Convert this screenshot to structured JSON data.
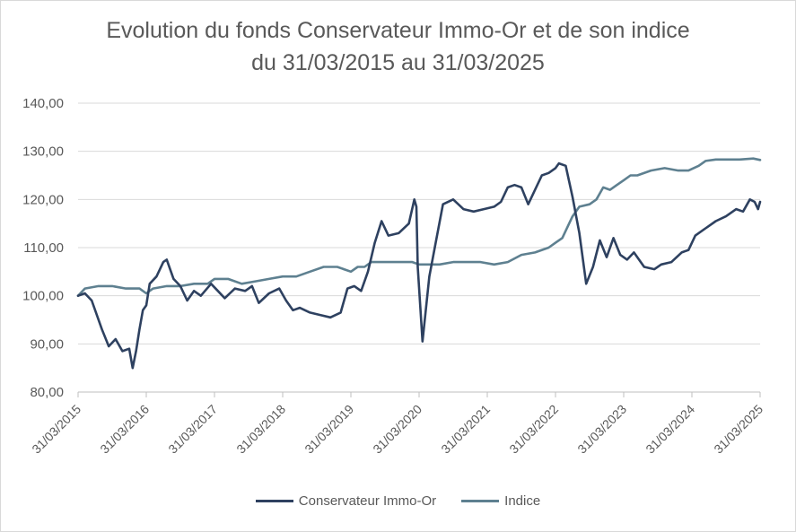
{
  "chart_data": {
    "type": "line",
    "title": "Evolution du fonds Conservateur Immo-Or et de son indice",
    "subtitle": "du 31/03/2015 au 31/03/2025",
    "xlabel": "",
    "ylabel": "",
    "ylim": [
      80,
      140
    ],
    "y_ticks": [
      "80,00",
      "90,00",
      "100,00",
      "110,00",
      "120,00",
      "130,00",
      "140,00"
    ],
    "x_ticks": [
      "31/03/2015",
      "31/03/2016",
      "31/03/2017",
      "31/03/2018",
      "31/03/2019",
      "31/03/2020",
      "31/03/2021",
      "31/03/2022",
      "31/03/2023",
      "31/03/2024",
      "31/03/2025"
    ],
    "grid": "horizontal",
    "legend_position": "bottom",
    "series": [
      {
        "name": "Conservateur Immo-Or",
        "color": "#2e4160",
        "x": [
          2015.0,
          2015.1,
          2015.2,
          2015.35,
          2015.45,
          2015.55,
          2015.65,
          2015.75,
          2015.8,
          2015.85,
          2015.9,
          2015.95,
          2016.0,
          2016.05,
          2016.15,
          2016.25,
          2016.3,
          2016.4,
          2016.5,
          2016.6,
          2016.7,
          2016.8,
          2016.95,
          2017.05,
          2017.15,
          2017.3,
          2017.45,
          2017.55,
          2017.65,
          2017.8,
          2017.95,
          2018.05,
          2018.15,
          2018.25,
          2018.4,
          2018.55,
          2018.7,
          2018.85,
          2018.95,
          2019.05,
          2019.15,
          2019.25,
          2019.35,
          2019.45,
          2019.55,
          2019.7,
          2019.85,
          2019.93,
          2019.96,
          2019.98,
          2020.05,
          2020.15,
          2020.25,
          2020.35,
          2020.5,
          2020.65,
          2020.8,
          2020.95,
          2021.1,
          2021.2,
          2021.3,
          2021.4,
          2021.5,
          2021.6,
          2021.7,
          2021.8,
          2021.9,
          2022.0,
          2022.05,
          2022.15,
          2022.25,
          2022.35,
          2022.45,
          2022.55,
          2022.65,
          2022.75,
          2022.85,
          2022.95,
          2023.05,
          2023.15,
          2023.3,
          2023.45,
          2023.55,
          2023.7,
          2023.85,
          2023.95,
          2024.05,
          2024.2,
          2024.35,
          2024.5,
          2024.65,
          2024.75,
          2024.85,
          2024.92,
          2024.97,
          2025.0
        ],
        "values": [
          100.0,
          100.5,
          99.0,
          93.0,
          89.5,
          91.0,
          88.5,
          89.0,
          85.0,
          88.5,
          93.0,
          97.0,
          98.0,
          102.5,
          104.0,
          107.0,
          107.5,
          103.5,
          102.0,
          99.0,
          101.0,
          100.0,
          102.5,
          101.0,
          99.5,
          101.5,
          101.0,
          102.0,
          98.5,
          100.5,
          101.5,
          99.0,
          97.0,
          97.5,
          96.5,
          96.0,
          95.5,
          96.5,
          101.5,
          102.0,
          101.0,
          105.0,
          111.0,
          115.5,
          112.5,
          113.0,
          115.0,
          120.0,
          118.5,
          106.0,
          90.5,
          104.0,
          111.5,
          119.0,
          120.0,
          118.0,
          117.5,
          118.0,
          118.5,
          119.5,
          122.5,
          123.0,
          122.5,
          119.0,
          122.0,
          125.0,
          125.5,
          126.5,
          127.5,
          127.0,
          120.5,
          113.0,
          102.5,
          106.0,
          111.5,
          108.0,
          112.0,
          108.5,
          107.5,
          109.0,
          106.0,
          105.5,
          106.5,
          107.0,
          109.0,
          109.5,
          112.5,
          114.0,
          115.5,
          116.5,
          118.0,
          117.5,
          120.0,
          119.5,
          118.0,
          119.5
        ]
      },
      {
        "name": "Indice",
        "color": "#5e8090",
        "x": [
          2015.0,
          2015.1,
          2015.3,
          2015.5,
          2015.7,
          2015.9,
          2016.0,
          2016.1,
          2016.3,
          2016.5,
          2016.7,
          2016.9,
          2017.0,
          2017.2,
          2017.4,
          2017.6,
          2017.8,
          2018.0,
          2018.2,
          2018.4,
          2018.6,
          2018.8,
          2019.0,
          2019.1,
          2019.2,
          2019.3,
          2019.5,
          2019.7,
          2019.9,
          2020.0,
          2020.1,
          2020.3,
          2020.5,
          2020.7,
          2020.9,
          2021.1,
          2021.3,
          2021.5,
          2021.7,
          2021.9,
          2022.0,
          2022.1,
          2022.15,
          2022.25,
          2022.35,
          2022.5,
          2022.6,
          2022.7,
          2022.8,
          2022.9,
          2023.0,
          2023.1,
          2023.2,
          2023.4,
          2023.6,
          2023.8,
          2023.95,
          2024.1,
          2024.2,
          2024.35,
          2024.5,
          2024.7,
          2024.9,
          2025.0
        ],
        "values": [
          100.0,
          101.5,
          102.0,
          102.0,
          101.5,
          101.5,
          100.5,
          101.5,
          102.0,
          102.0,
          102.5,
          102.5,
          103.5,
          103.5,
          102.5,
          103.0,
          103.5,
          104.0,
          104.0,
          105.0,
          106.0,
          106.0,
          105.0,
          106.0,
          106.0,
          107.0,
          107.0,
          107.0,
          107.0,
          106.5,
          106.5,
          106.5,
          107.0,
          107.0,
          107.0,
          106.5,
          107.0,
          108.5,
          109.0,
          110.0,
          111.0,
          112.0,
          113.5,
          116.5,
          118.5,
          119.0,
          120.0,
          122.5,
          122.0,
          123.0,
          124.0,
          125.0,
          125.0,
          126.0,
          126.5,
          126.0,
          126.0,
          127.0,
          128.0,
          128.3,
          128.3,
          128.3,
          128.5,
          128.2
        ]
      }
    ]
  }
}
